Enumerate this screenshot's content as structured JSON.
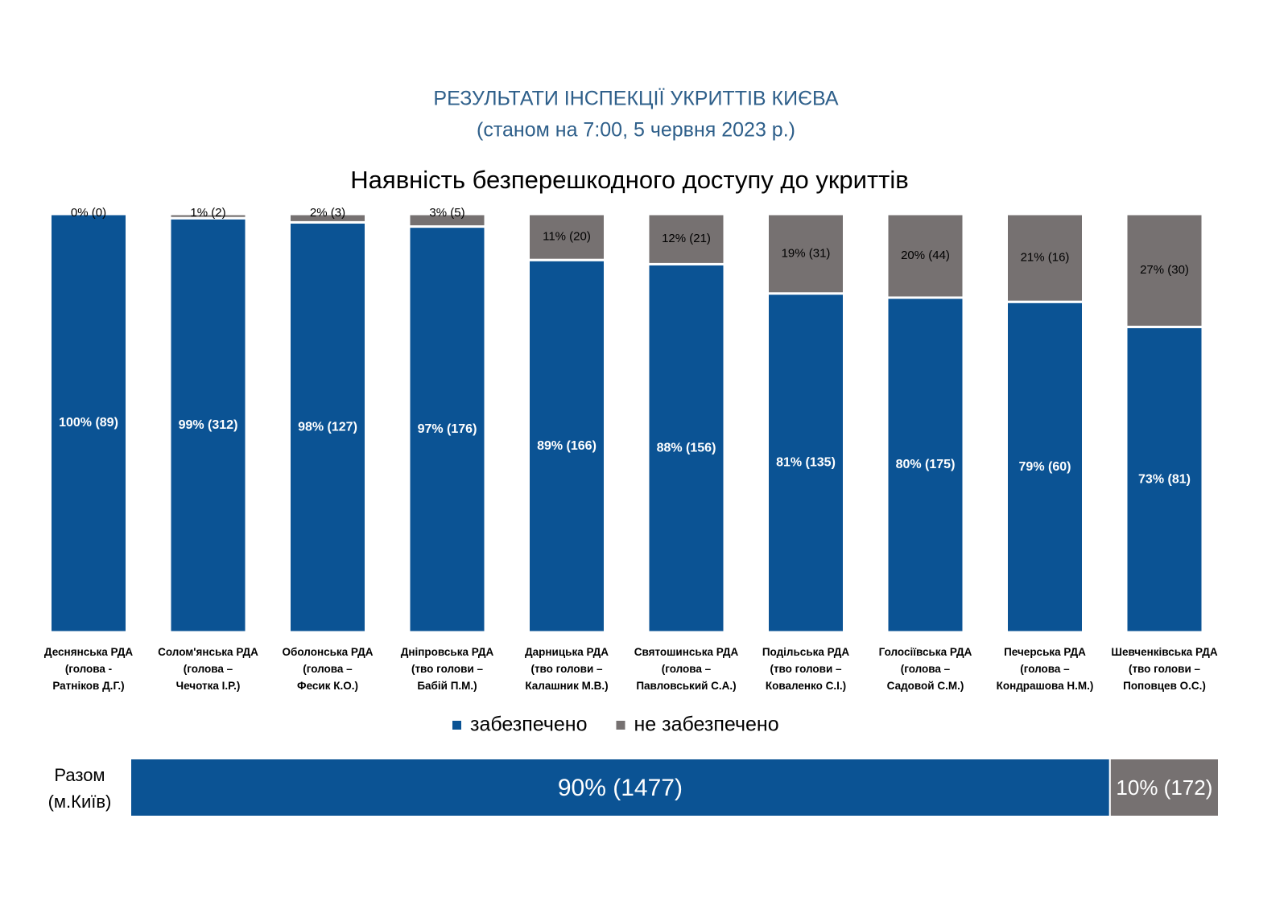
{
  "header": {
    "title": "РЕЗУЛЬТАТИ ІНСПЕКЦІЇ УКРИТТІВ КИЄВА",
    "subtitle": "(станом на 7:00, 5 червня 2023 р.)"
  },
  "chart_data": [
    {
      "type": "bar",
      "stacked": true,
      "orientation": "vertical",
      "title": "Наявність безперешкодного доступу до укриттів",
      "categories": [
        "Деснянська РДА\n(голова -\nРатніков Д.Г.)",
        "Солом'янська РДА\n(голова –\nЧечотка І.Р.)",
        "Оболонська РДА\n(голова –\nФесик К.О.)",
        "Дніпровська РДА\n(тво голови –\nБабій П.М.)",
        "Дарницька  РДА\n(тво голови –\nКалашник М.В.)",
        "Святошинська РДА\n(голова –\nПавловський С.А.)",
        "Подільська РДА\n(тво голови –\nКоваленко С.І.)",
        "Голосіївська РДА\n(голова –\nСадовой С.М.)",
        "Печерська РДА\n(голова –\nКондрашова Н.М.)",
        "Шевченківська  РДА\n(тво голови –\nПоповцев О.С.)"
      ],
      "series": [
        {
          "name": "забезпечено",
          "color": "#0b5394",
          "values": [
            100,
            99,
            98,
            97,
            89,
            88,
            81,
            80,
            79,
            73
          ],
          "value_labels": [
            "100% (89)",
            "99% (312)",
            "98% (127)",
            "97% (176)",
            "89% (166)",
            "88% (156)",
            "81% (135)",
            "80% (175)",
            "79% (60)",
            "73% (81)"
          ]
        },
        {
          "name": "не забезпечено",
          "color": "#767171",
          "values": [
            0,
            1,
            2,
            3,
            11,
            12,
            19,
            20,
            21,
            27
          ],
          "value_labels": [
            "0% (0)",
            "1% (2)",
            "2% (3)",
            "3% (5)",
            "11% (20)",
            "12% (21)",
            "19% (31)",
            "20% (44)",
            "21% (16)",
            "27% (30)"
          ]
        }
      ],
      "ylim": [
        0,
        100
      ],
      "legend": "bottom"
    },
    {
      "type": "bar",
      "stacked": true,
      "orientation": "horizontal",
      "categories": [
        "Разом\n(м.Київ)"
      ],
      "series": [
        {
          "name": "забезпечено",
          "color": "#0b5394",
          "values": [
            90
          ],
          "value_labels": [
            "90% (1477)"
          ]
        },
        {
          "name": "не забезпечено",
          "color": "#767171",
          "values": [
            10
          ],
          "value_labels": [
            "10% (172)"
          ]
        }
      ],
      "xlim": [
        0,
        100
      ]
    }
  ]
}
